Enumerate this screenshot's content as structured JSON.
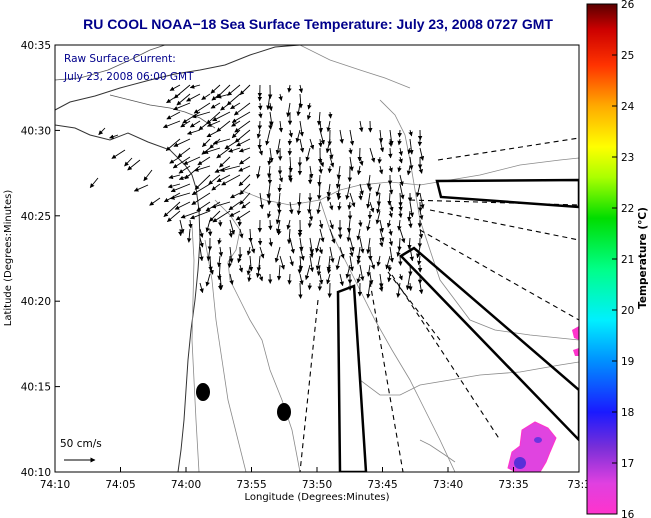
{
  "chart_data": {
    "type": "map",
    "title": "RU COOL  NOAA−18  Sea Surface Temperature:  July 23, 2008 0727 GMT",
    "inset_line1": "Raw Surface Current:",
    "inset_line2": "July 23, 2008 06:00 GMT",
    "scale_label": "50 cm/s",
    "xlabel": "Longitude (Degrees:Minutes)",
    "ylabel": "Latitude (Degrees:Minutes)",
    "x_ticks": [
      "74:10",
      "74:05",
      "74:00",
      "73:55",
      "73:50",
      "73:45",
      "73:40",
      "73:35",
      "73:3"
    ],
    "y_ticks": [
      "40:35",
      "40:30",
      "40:25",
      "40:20",
      "40:15",
      "40:10"
    ],
    "colorbar": {
      "label": "Temperature (°C)",
      "ticks": [
        "26",
        "25",
        "24",
        "23",
        "22",
        "21",
        "20",
        "19",
        "18",
        "17",
        "16"
      ],
      "range": [
        16,
        26
      ],
      "colors": [
        "#ff33cc",
        "#8a2be2",
        "#0000ff",
        "#0080ff",
        "#00ffff",
        "#00ff80",
        "#00e000",
        "#a0ff00",
        "#ffff00",
        "#ffa500",
        "#ff4000",
        "#cc0000",
        "#660000"
      ]
    },
    "sst_patches": [
      {
        "lon": -73.58,
        "lat": 40.177,
        "temp": 16.4
      },
      {
        "lon": -73.585,
        "lat": 40.18,
        "temp": 16.8
      },
      {
        "lon": -73.597,
        "lat": 40.17,
        "temp": 16.3
      },
      {
        "lon": -73.53,
        "lat": 40.27,
        "temp": 16.2
      }
    ]
  }
}
